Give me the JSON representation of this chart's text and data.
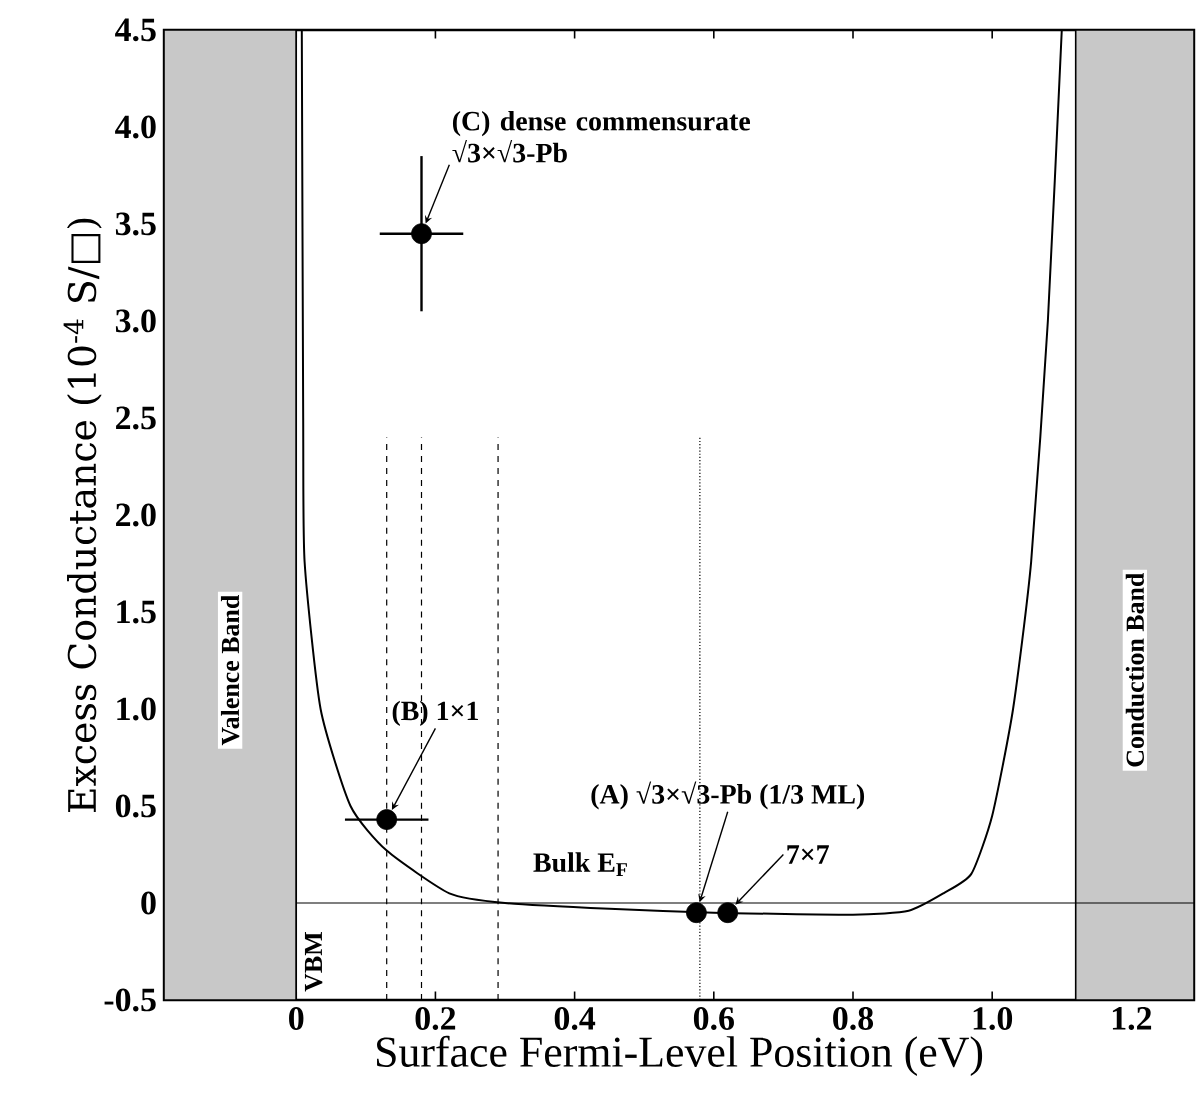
{
  "chart_data": {
    "type": "line",
    "xlabel": "Surface Fermi-Level Position (eV)",
    "ylabel": "Excess Conductance (10$^{-4}$ S/□)",
    "xlim": [
      -0.19,
      1.29
    ],
    "ylim": [
      -0.5,
      4.5
    ],
    "xticks": [
      0,
      0.2,
      0.4,
      0.6,
      0.8,
      {
        "value": 1,
        "label": "1.0"
      },
      1.2
    ],
    "yticks": [
      -0.5,
      0,
      0.5,
      {
        "value": 1,
        "label": "1.0"
      },
      1.5,
      {
        "value": 2,
        "label": "2.0"
      },
      2.5,
      {
        "value": 3,
        "label": "3.0"
      },
      3.5,
      {
        "value": 4,
        "label": "4.0"
      },
      4.5
    ],
    "series": [
      {
        "color": "#000000",
        "line_style": "solid",
        "marker": "none",
        "x": [
          0.008,
          0.01,
          0.012,
          0.035,
          0.078,
          0.13,
          0.22,
          0.3,
          0.45,
          0.6,
          0.8,
          0.88,
          0.93,
          0.97,
          1.0,
          1.03,
          1.056,
          1.08,
          1.1
        ],
        "values": [
          4.5,
          2.5,
          1.76,
          1.0,
          0.5,
          0.27,
          0.05,
          0.0,
          -0.03,
          -0.05,
          -0.06,
          -0.04,
          0.05,
          0.15,
          0.45,
          1.0,
          1.76,
          3.0,
          4.5
        ]
      },
      {
        "type": "scatter",
        "color": "#000000",
        "marker": "circle",
        "x": [
          0.13,
          0.18,
          0.575,
          0.62
        ],
        "values": [
          0.43,
          3.45,
          -0.05,
          -0.05
        ],
        "errors": [
          null,
          0.4,
          null,
          null
        ],
        "xerrors": [
          0.06,
          0.06,
          null,
          null
        ]
      }
    ],
    "bands": [
      {
        "axis": "x",
        "from": -0.19,
        "to": 0,
        "label": "Valence Band",
        "color": "#c8c8c8"
      },
      {
        "axis": "x",
        "from": 1.12,
        "to": 1.29,
        "label": "Conduction Band",
        "color": "#c8c8c8"
      }
    ],
    "ref_lines": [
      {
        "axis": "y",
        "value": 0,
        "line_style": "solid"
      },
      {
        "axis": "x",
        "value": 0,
        "label": "VBM",
        "line_style": "solid"
      },
      {
        "axis": "x",
        "value": 0.13,
        "line_style": "dashed"
      },
      {
        "axis": "x",
        "value": 0.18,
        "line_style": "dashed"
      },
      {
        "axis": "x",
        "value": 0.29,
        "label": "Bulk E$_{F}$",
        "line_style": "dashed"
      },
      {
        "axis": "x",
        "value": 0.58,
        "line_style": "dotted"
      }
    ],
    "annotations": [
      {
        "text": "(C) dense commensurate √3×√3-Pb",
        "x": 0.18,
        "y": 3.45
      },
      {
        "text": "(B) 1×1",
        "x": 0.13,
        "y": 0.43
      },
      {
        "text": "(A) √3×√3-Pb (1/3 ML)",
        "x": 0.575,
        "y": -0.05
      },
      {
        "text": "7×7",
        "x": 0.62,
        "y": -0.05
      }
    ]
  }
}
